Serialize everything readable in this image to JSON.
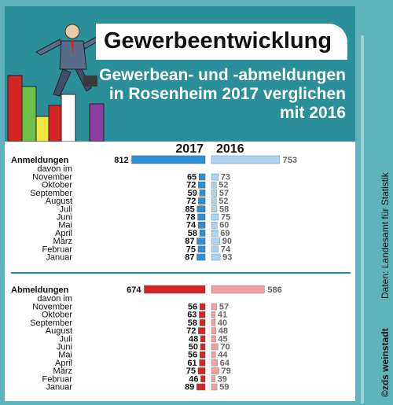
{
  "header": {
    "title": "Gewerbeentwicklung",
    "subtitle_lines": [
      "Gewerbean- und -abmeldungen",
      "in Rosenheim 2017 verglichen",
      "mit 2016"
    ]
  },
  "credits": {
    "source": "Daten: Landesamt für Statistik",
    "credit": "©zds weinstadt"
  },
  "colors": {
    "frame": "#5fb3bd",
    "header_teal": "#2a8f99",
    "blue_2017": "#2d8fd6",
    "blue_2016": "#a8d4f2",
    "red_2017": "#d42525",
    "red_2016": "#f0a0a0"
  },
  "chart_data": [
    {
      "type": "bar",
      "group": "Anmeldungen",
      "series_names": [
        "2017",
        "2016"
      ],
      "total_label": "Anmeldungen",
      "sub_label": "davon im",
      "totals": [
        812,
        753
      ],
      "categories": [
        "November",
        "Oktober",
        "September",
        "August",
        "Juli",
        "Juni",
        "Mai",
        "April",
        "März",
        "Februar",
        "Januar"
      ],
      "series": [
        {
          "name": "2017",
          "values": [
            65,
            72,
            59,
            72,
            85,
            78,
            74,
            58,
            87,
            75,
            87
          ]
        },
        {
          "name": "2016",
          "values": [
            73,
            52,
            57,
            52,
            58,
            75,
            60,
            69,
            90,
            74,
            93
          ]
        }
      ]
    },
    {
      "type": "bar",
      "group": "Abmeldungen",
      "series_names": [
        "2017",
        "2016"
      ],
      "total_label": "Abmeldungen",
      "sub_label": "davon im",
      "totals": [
        674,
        586
      ],
      "categories": [
        "November",
        "Oktober",
        "September",
        "August",
        "Juli",
        "Juni",
        "Mai",
        "April",
        "März",
        "Februar",
        "Januar"
      ],
      "series": [
        {
          "name": "2017",
          "values": [
            56,
            63,
            58,
            72,
            48,
            50,
            56,
            61,
            75,
            46,
            89
          ]
        },
        {
          "name": "2016",
          "values": [
            57,
            41,
            40,
            48,
            45,
            70,
            44,
            64,
            79,
            39,
            59
          ]
        }
      ]
    }
  ]
}
